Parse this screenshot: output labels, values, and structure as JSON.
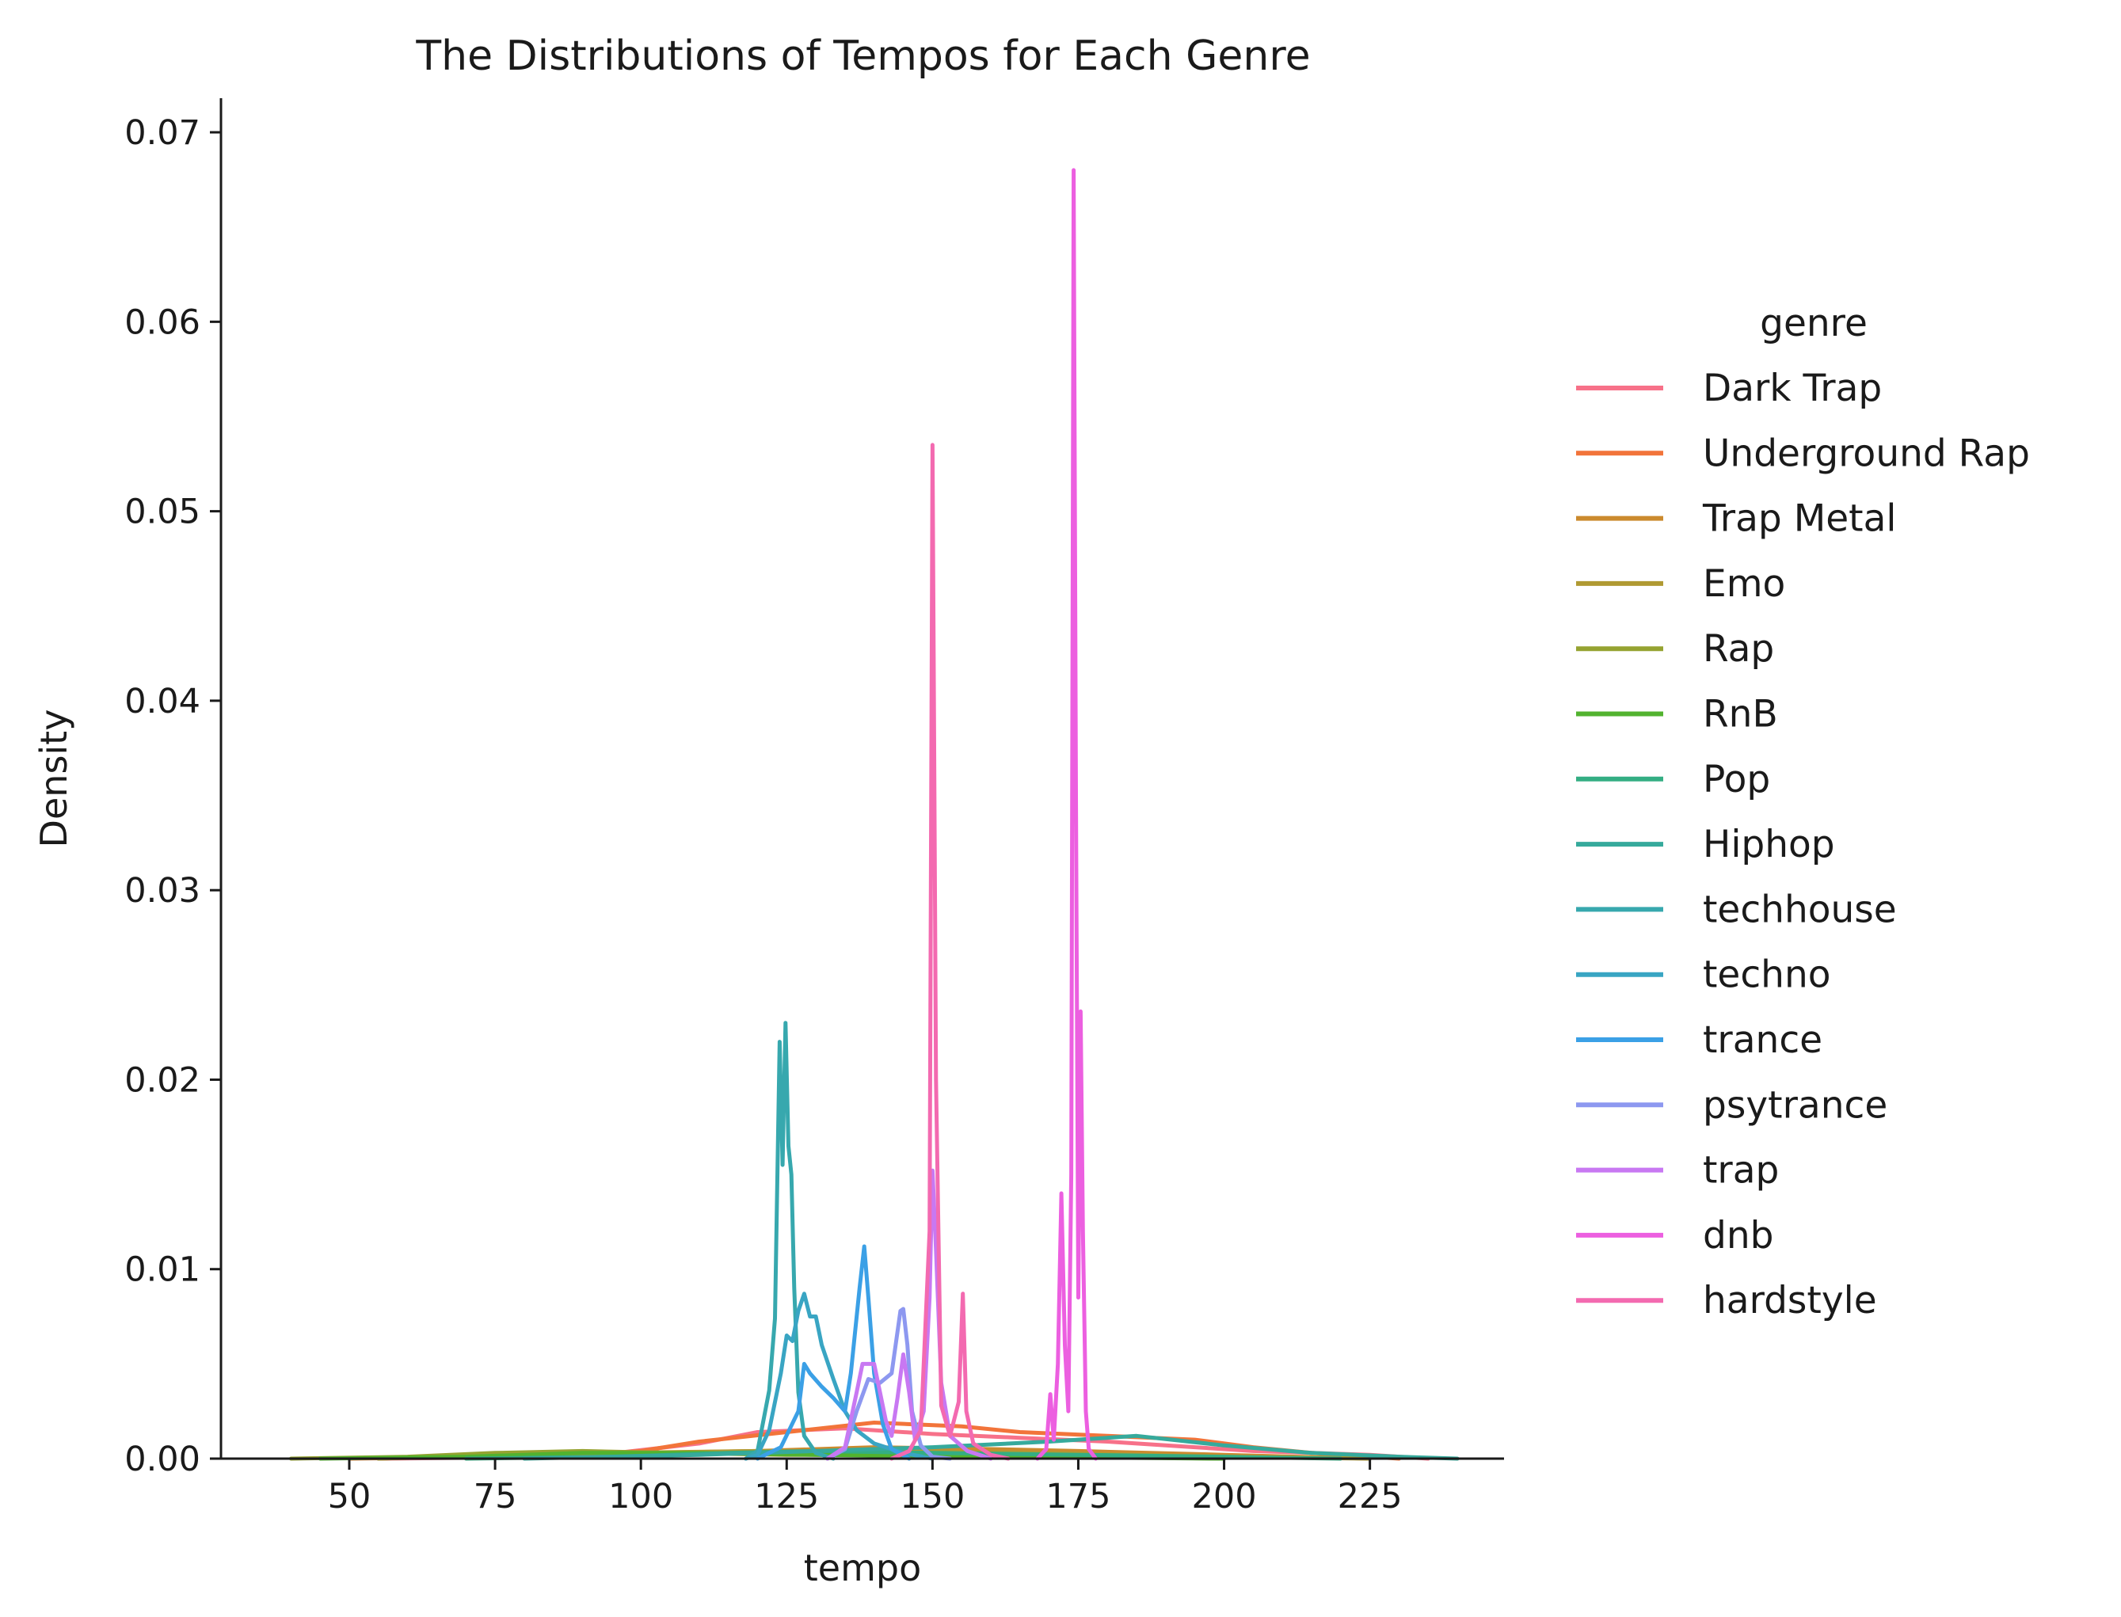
{
  "chart_data": {
    "type": "line",
    "title": "The Distributions of Tempos for Each Genre",
    "xlabel": "tempo",
    "ylabel": "Density",
    "xlim": [
      28,
      248
    ],
    "ylim": [
      0,
      0.0718
    ],
    "xticks": [
      50,
      75,
      100,
      125,
      150,
      175,
      200,
      225
    ],
    "yticks": [
      0.0,
      0.01,
      0.02,
      0.03,
      0.04,
      0.05,
      0.06,
      0.07
    ],
    "xtick_labels": [
      "50",
      "75",
      "100",
      "125",
      "150",
      "175",
      "200",
      "225"
    ],
    "ytick_labels": [
      "0.00",
      "0.01",
      "0.02",
      "0.03",
      "0.04",
      "0.05",
      "0.06",
      "0.07"
    ],
    "grid": false,
    "legend": {
      "title": "genre",
      "placement": "right, outside"
    },
    "series": [
      {
        "name": "Dark Trap",
        "color": "#f77189",
        "points": [
          [
            55,
            0
          ],
          [
            90,
            0.0001
          ],
          [
            110,
            0.0008
          ],
          [
            120,
            0.0014
          ],
          [
            135,
            0.0016
          ],
          [
            150,
            0.0013
          ],
          [
            165,
            0.0011
          ],
          [
            180,
            0.0009
          ],
          [
            195,
            0.0006
          ],
          [
            205,
            0.0004
          ],
          [
            215,
            0.0003
          ],
          [
            225,
            0.0002
          ],
          [
            235,
            0
          ]
        ]
      },
      {
        "name": "Underground Rap",
        "color": "#f2743a",
        "points": [
          [
            50,
            0
          ],
          [
            75,
            0.0001
          ],
          [
            90,
            0.0002
          ],
          [
            100,
            0.0004
          ],
          [
            110,
            0.0009
          ],
          [
            125,
            0.0014
          ],
          [
            140,
            0.0019
          ],
          [
            155,
            0.0017
          ],
          [
            165,
            0.0014
          ],
          [
            180,
            0.0012
          ],
          [
            195,
            0.001
          ],
          [
            205,
            0.0006
          ],
          [
            215,
            0.0003
          ],
          [
            230,
            0
          ]
        ]
      },
      {
        "name": "Trap Metal",
        "color": "#cb8a2e",
        "points": [
          [
            55,
            0
          ],
          [
            80,
            0.0002
          ],
          [
            100,
            0.0003
          ],
          [
            120,
            0.0004
          ],
          [
            140,
            0.0006
          ],
          [
            160,
            0.0005
          ],
          [
            175,
            0.0004
          ],
          [
            200,
            0.0002
          ],
          [
            225,
            0
          ]
        ]
      },
      {
        "name": "Emo",
        "color": "#b09a32",
        "points": [
          [
            55,
            0
          ],
          [
            75,
            0.0002
          ],
          [
            95,
            0.0003
          ],
          [
            120,
            0.0004
          ],
          [
            145,
            0.0004
          ],
          [
            170,
            0.0003
          ],
          [
            200,
            0.0001
          ],
          [
            225,
            0
          ]
        ]
      },
      {
        "name": "Rap",
        "color": "#95a331",
        "points": [
          [
            40,
            0
          ],
          [
            60,
            0.0001
          ],
          [
            75,
            0.0003
          ],
          [
            90,
            0.0004
          ],
          [
            105,
            0.0003
          ],
          [
            125,
            0.0002
          ],
          [
            150,
            0.0002
          ],
          [
            175,
            0.0001
          ],
          [
            200,
            0
          ]
        ]
      },
      {
        "name": "RnB",
        "color": "#52b32f",
        "points": [
          [
            45,
            0
          ],
          [
            70,
            0.0001
          ],
          [
            90,
            0.0003
          ],
          [
            110,
            0.0003
          ],
          [
            130,
            0.0002
          ],
          [
            160,
            0.0001
          ],
          [
            200,
            0
          ]
        ]
      },
      {
        "name": "Pop",
        "color": "#34ae83",
        "points": [
          [
            70,
            0
          ],
          [
            95,
            0.0001
          ],
          [
            115,
            0.0003
          ],
          [
            130,
            0.0004
          ],
          [
            150,
            0.0003
          ],
          [
            175,
            0.0002
          ],
          [
            200,
            0.0001
          ],
          [
            220,
            0
          ]
        ]
      },
      {
        "name": "Hiphop",
        "color": "#36aa9c",
        "points": [
          [
            80,
            0
          ],
          [
            110,
            0.0002
          ],
          [
            130,
            0.0004
          ],
          [
            150,
            0.0006
          ],
          [
            170,
            0.0009
          ],
          [
            185,
            0.0012
          ],
          [
            200,
            0.0007
          ],
          [
            215,
            0.0003
          ],
          [
            230,
            0.0001
          ],
          [
            240,
            0
          ]
        ]
      },
      {
        "name": "techhouse",
        "color": "#37a8ae",
        "points": [
          [
            118,
            0
          ],
          [
            120,
            0.0004
          ],
          [
            122,
            0.0036
          ],
          [
            123,
            0.0074
          ],
          [
            123.8,
            0.022
          ],
          [
            124.3,
            0.0155
          ],
          [
            124.8,
            0.023
          ],
          [
            125.3,
            0.0165
          ],
          [
            125.8,
            0.015
          ],
          [
            126.3,
            0.009
          ],
          [
            127,
            0.0035
          ],
          [
            128,
            0.0012
          ],
          [
            130,
            0.0003
          ],
          [
            133,
            0
          ]
        ]
      },
      {
        "name": "techno",
        "color": "#39a5c3",
        "points": [
          [
            118,
            0
          ],
          [
            120,
            0.0002
          ],
          [
            122,
            0.0015
          ],
          [
            124,
            0.0045
          ],
          [
            125,
            0.0065
          ],
          [
            126,
            0.0062
          ],
          [
            127,
            0.0078
          ],
          [
            128,
            0.0087
          ],
          [
            129,
            0.0075
          ],
          [
            130,
            0.0075
          ],
          [
            131,
            0.006
          ],
          [
            133,
            0.0042
          ],
          [
            135,
            0.0025
          ],
          [
            137,
            0.0015
          ],
          [
            140,
            0.0008
          ],
          [
            145,
            0.0003
          ],
          [
            150,
            0
          ]
        ]
      },
      {
        "name": "trance",
        "color": "#3ba0e6",
        "points": [
          [
            120,
            0
          ],
          [
            124,
            0.0006
          ],
          [
            127,
            0.0025
          ],
          [
            128,
            0.005
          ],
          [
            129,
            0.0045
          ],
          [
            131,
            0.0038
          ],
          [
            133,
            0.0032
          ],
          [
            135,
            0.0025
          ],
          [
            136,
            0.0045
          ],
          [
            137.5,
            0.009
          ],
          [
            138.3,
            0.0112
          ],
          [
            139,
            0.0085
          ],
          [
            140,
            0.0045
          ],
          [
            141.5,
            0.0018
          ],
          [
            143,
            0.0005
          ],
          [
            146,
            0
          ]
        ]
      },
      {
        "name": "psytrance",
        "color": "#8d98f0",
        "points": [
          [
            132,
            0
          ],
          [
            135,
            0.0005
          ],
          [
            137,
            0.0025
          ],
          [
            139,
            0.0042
          ],
          [
            141,
            0.004
          ],
          [
            143,
            0.0045
          ],
          [
            144.5,
            0.0078
          ],
          [
            145,
            0.0079
          ],
          [
            145.7,
            0.006
          ],
          [
            146.5,
            0.0025
          ],
          [
            148,
            0.0007
          ],
          [
            150,
            0.0001
          ],
          [
            153,
            0
          ]
        ]
      },
      {
        "name": "trap",
        "color": "#c878f2",
        "points": [
          [
            132,
            0
          ],
          [
            135,
            0.0006
          ],
          [
            137,
            0.0035
          ],
          [
            138,
            0.005
          ],
          [
            140,
            0.005
          ],
          [
            142,
            0.002
          ],
          [
            143,
            0.0012
          ],
          [
            144,
            0.0032
          ],
          [
            145,
            0.0055
          ],
          [
            146,
            0.0035
          ],
          [
            147,
            0.001
          ],
          [
            148.5,
            0.0025
          ],
          [
            149.5,
            0.0085
          ],
          [
            150,
            0.0152
          ],
          [
            150.6,
            0.011
          ],
          [
            151.5,
            0.004
          ],
          [
            153,
            0.0012
          ],
          [
            156,
            0.0004
          ],
          [
            160,
            0
          ]
        ]
      },
      {
        "name": "dnb",
        "color": "#ec5fe0",
        "points": [
          [
            168,
            0
          ],
          [
            169.5,
            0.0005
          ],
          [
            170.2,
            0.0034
          ],
          [
            170.8,
            0.001
          ],
          [
            171.5,
            0.005
          ],
          [
            172.1,
            0.014
          ],
          [
            172.7,
            0.006
          ],
          [
            173.3,
            0.0025
          ],
          [
            173.8,
            0.015
          ],
          [
            174.2,
            0.068
          ],
          [
            174.6,
            0.035
          ],
          [
            175,
            0.0085
          ],
          [
            175.4,
            0.0236
          ],
          [
            175.8,
            0.012
          ],
          [
            176.3,
            0.0025
          ],
          [
            176.8,
            0.0005
          ],
          [
            178,
            0
          ]
        ]
      },
      {
        "name": "hardstyle",
        "color": "#f36ab0",
        "points": [
          [
            143,
            0
          ],
          [
            146,
            0.0004
          ],
          [
            148,
            0.0015
          ],
          [
            149.5,
            0.012
          ],
          [
            150,
            0.0535
          ],
          [
            150.6,
            0.02
          ],
          [
            151.5,
            0.0028
          ],
          [
            153,
            0.0012
          ],
          [
            154.5,
            0.003
          ],
          [
            155.2,
            0.0087
          ],
          [
            155.8,
            0.0025
          ],
          [
            157,
            0.0008
          ],
          [
            160,
            0.0002
          ],
          [
            163,
            0
          ]
        ]
      }
    ]
  }
}
